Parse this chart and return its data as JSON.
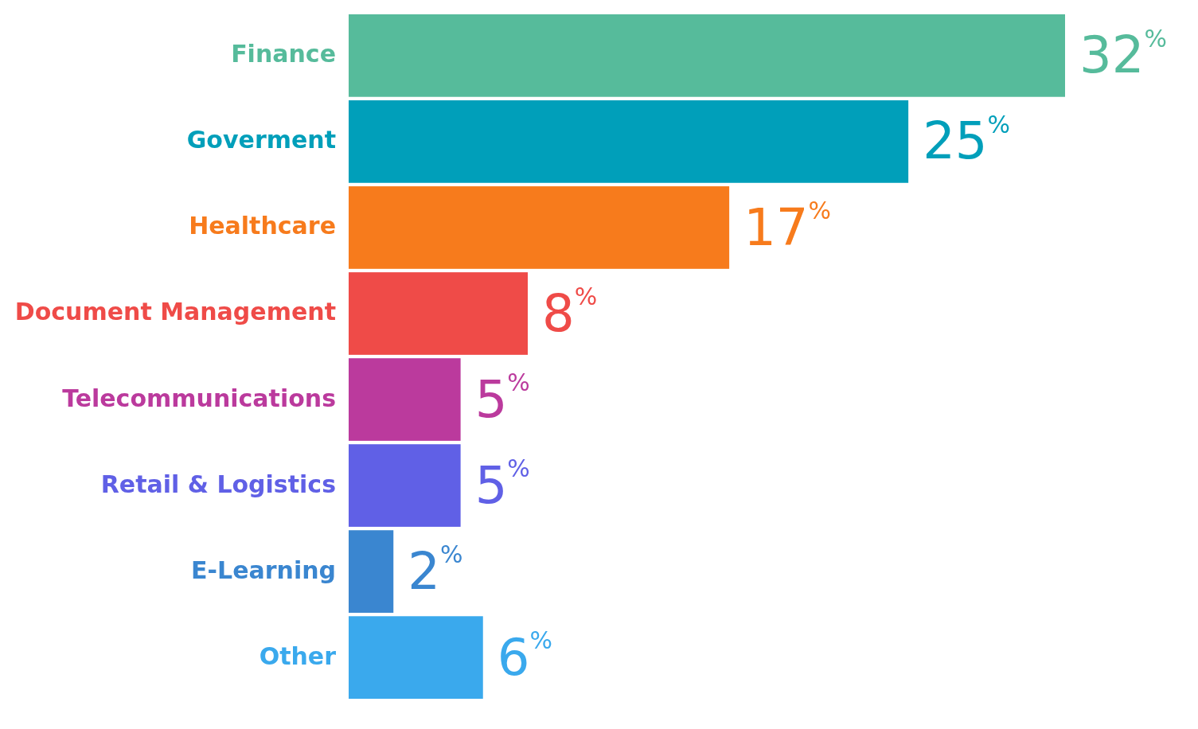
{
  "chart_data": {
    "type": "bar",
    "orientation": "horizontal",
    "categories": [
      "Finance",
      "Goverment",
      "Healthcare",
      "Document Management",
      "Telecommunications",
      "Retail & Logistics",
      "E-Learning",
      "Other"
    ],
    "values": [
      32,
      25,
      17,
      8,
      5,
      5,
      2,
      6
    ],
    "colors": [
      "#56bb9b",
      "#009fba",
      "#f77b1c",
      "#ef4b48",
      "#bb3a9d",
      "#6060e6",
      "#3a86d0",
      "#3aa9ed"
    ],
    "value_labels": [
      "32$^{%}$",
      "25$^{%}$",
      "17$^{%}$",
      "8$^{%}$",
      "5$^{%}$",
      "5$^{%}$",
      "2$^{%}$",
      "6$^{%}$"
    ]
  }
}
